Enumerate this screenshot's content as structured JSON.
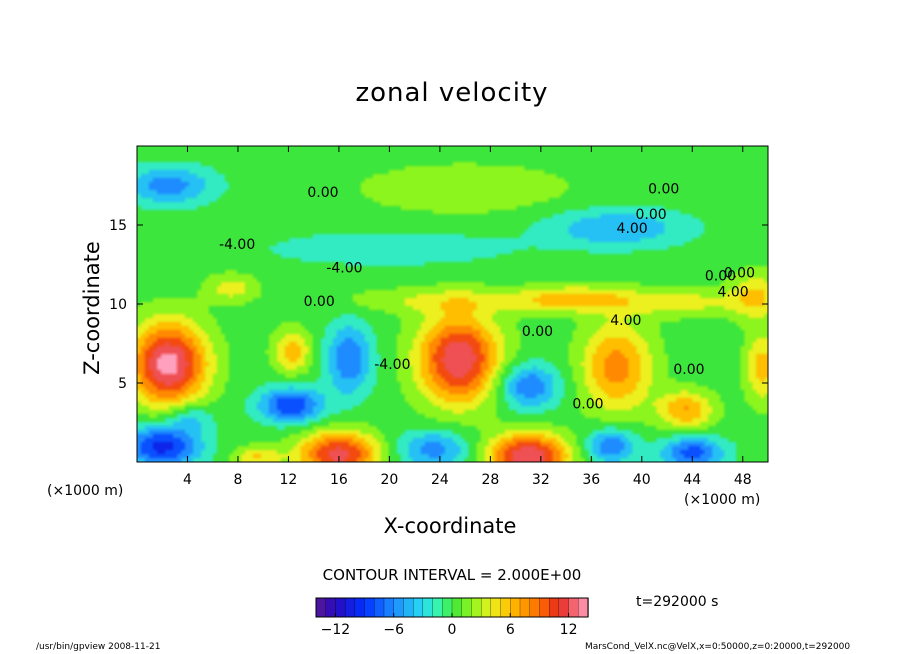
{
  "chart_data": {
    "type": "contour",
    "title": "zonal velocity",
    "xlabel": "X-coordinate",
    "ylabel": "Z-coordinate",
    "x_unit_label": "(×1000 m)",
    "xlim": [
      0,
      50
    ],
    "ylim": [
      0,
      20
    ],
    "x_ticks": [
      "4",
      "8",
      "12",
      "16",
      "20",
      "24",
      "28",
      "32",
      "36",
      "40",
      "44",
      "48"
    ],
    "y_ticks": [
      "5",
      "10",
      "15"
    ],
    "contour_labels": [
      "0.00",
      "0.00",
      "0.00",
      "-4.00",
      "4.00",
      "-4.00",
      "0.00",
      "0.00",
      "4.00",
      "-4.00",
      "0.00",
      "0.00",
      "0.00",
      "4.00",
      "0.00"
    ],
    "contour_interval_text": "CONTOUR INTERVAL = 2.000E+00",
    "colorbar": {
      "range": [
        -14,
        14
      ],
      "ticks": [
        "−12",
        "−6",
        "0",
        "6",
        "12"
      ],
      "colors": [
        "#6a1fa8",
        "#2a10c8",
        "#0040ff",
        "#20a0ff",
        "#30e0ff",
        "#40ff90",
        "#40e020",
        "#a0ff20",
        "#f0f020",
        "#ffb000",
        "#ff5000",
        "#e02020",
        "#ff80a0"
      ]
    },
    "time_label": "t=292000 s"
  },
  "footer": {
    "left": "/usr/bin/gpview  2008-11-21",
    "right": "MarsCond_VelX.nc@VelX,x=0:50000,z=0:20000,t=292000"
  }
}
